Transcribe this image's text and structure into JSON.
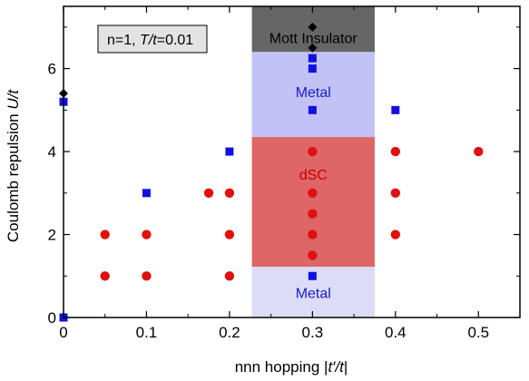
{
  "chart_data": {
    "type": "scatter",
    "xlabel_parts": [
      "nnn hopping |",
      "t′",
      "/",
      "t",
      "|"
    ],
    "ylabel_parts": [
      "Coulomb repulsion ",
      "U",
      "/",
      "t"
    ],
    "annotation_parts": [
      "n=1, ",
      "T",
      "/",
      "t",
      "=0.01"
    ],
    "xlim": [
      0,
      0.55
    ],
    "ylim": [
      0,
      7.5
    ],
    "x_ticks": [
      0,
      0.1,
      0.2,
      0.3,
      0.4,
      0.5
    ],
    "x_tick_labels": [
      "0",
      "0.1",
      "0.2",
      "0.3",
      "0.4",
      "0.5"
    ],
    "y_ticks": [
      0,
      2,
      4,
      6
    ],
    "y_tick_labels": [
      "0",
      "2",
      "4",
      "6"
    ],
    "regions": [
      {
        "label": "Mott Insulator",
        "x_range": [
          0.227,
          0.375
        ],
        "y_range": [
          6.4,
          7.5
        ],
        "fill": "#666666",
        "text_color": "#000000",
        "label_y": 6.75
      },
      {
        "label": "Metal",
        "x_range": [
          0.227,
          0.375
        ],
        "y_range": [
          4.35,
          6.4
        ],
        "fill": "#c2c2f6",
        "text_color": "#1a1ad0",
        "label_y": 5.45
      },
      {
        "label": "dSC",
        "x_range": [
          0.227,
          0.375
        ],
        "y_range": [
          1.22,
          4.35
        ],
        "fill": "#df6666",
        "text_color": "#c80000",
        "label_y": 3.45
      },
      {
        "label": "Metal",
        "x_range": [
          0.227,
          0.375
        ],
        "y_range": [
          0,
          1.22
        ],
        "fill": "#dcdcf8",
        "text_color": "#1a1ad0",
        "label_y": 0.6
      }
    ],
    "series": [
      {
        "marker": "circle",
        "color": "#e01010",
        "points": [
          [
            0.05,
            1
          ],
          [
            0.05,
            2
          ],
          [
            0.1,
            1
          ],
          [
            0.1,
            2
          ],
          [
            0.175,
            3
          ],
          [
            0.2,
            1
          ],
          [
            0.2,
            2
          ],
          [
            0.2,
            3
          ],
          [
            0.3,
            1.5
          ],
          [
            0.3,
            2
          ],
          [
            0.3,
            2.5
          ],
          [
            0.3,
            3
          ],
          [
            0.3,
            4
          ],
          [
            0.4,
            2
          ],
          [
            0.4,
            3
          ],
          [
            0.4,
            4
          ],
          [
            0.5,
            4
          ]
        ]
      },
      {
        "marker": "square",
        "color": "#1010e0",
        "points": [
          [
            0,
            0
          ],
          [
            0,
            5.2
          ],
          [
            0.1,
            3
          ],
          [
            0.2,
            4
          ],
          [
            0.3,
            1
          ],
          [
            0.3,
            5
          ],
          [
            0.3,
            6
          ],
          [
            0.3,
            6.25
          ],
          [
            0.4,
            5
          ]
        ]
      },
      {
        "marker": "diamond",
        "color": "#000000",
        "points": [
          [
            0,
            5.4
          ],
          [
            0.3,
            6.5
          ],
          [
            0.3,
            7
          ]
        ]
      }
    ]
  }
}
